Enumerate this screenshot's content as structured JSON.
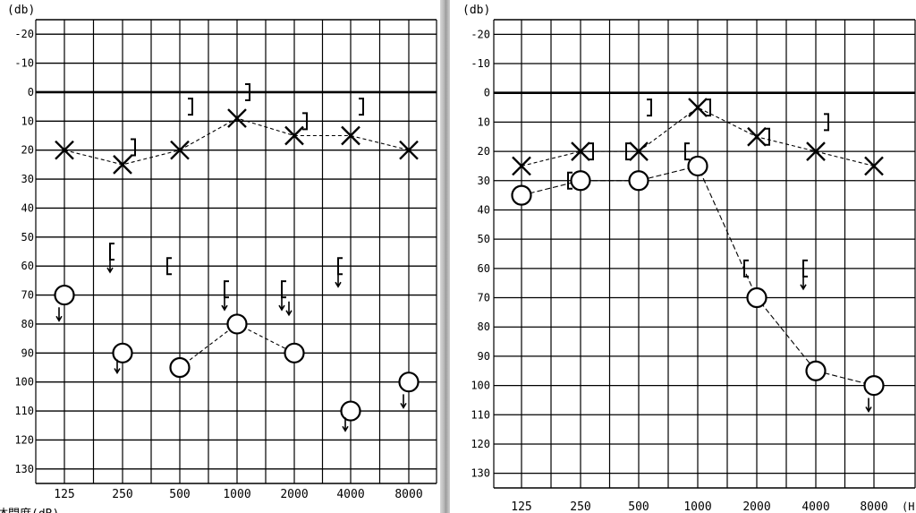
{
  "chart_data": [
    {
      "type": "scatter",
      "ylabel": "(db)",
      "y_ticks": [
        "-20",
        "-10",
        "0",
        "10",
        "20",
        "30",
        "40",
        "50",
        "60",
        "70",
        "80",
        "90",
        "100",
        "110",
        "120",
        "130"
      ],
      "x_ticks": [
        "125",
        "250",
        "500",
        "1000",
        "2000",
        "4000",
        "8000"
      ],
      "ylim": [
        -25,
        135
      ],
      "y_reversed": true,
      "grid": true,
      "footer_text": "体間度(dB)",
      "series": [
        {
          "marker": "X",
          "connected": true,
          "dash": true,
          "points": [
            [
              125,
              20
            ],
            [
              250,
              25
            ],
            [
              500,
              20
            ],
            [
              1000,
              9
            ],
            [
              2000,
              15
            ],
            [
              4000,
              15
            ],
            [
              8000,
              20
            ]
          ]
        },
        {
          "marker": "O",
          "connected": false,
          "points": [
            [
              125,
              70
            ],
            [
              250,
              90
            ],
            [
              500,
              95
            ],
            [
              1000,
              80
            ],
            [
              2000,
              90
            ],
            [
              4000,
              110
            ],
            [
              8000,
              100
            ]
          ],
          "lines": [
            [
              [
                500,
                95
              ],
              [
                1000,
                80
              ]
            ],
            [
              [
                1000,
                80
              ],
              [
                2000,
                90
              ]
            ]
          ]
        },
        {
          "marker": "]",
          "points": [
            [
              250,
              19
            ],
            [
              500,
              5
            ],
            [
              1000,
              0
            ],
            [
              2000,
              10
            ],
            [
              4000,
              5
            ]
          ]
        },
        {
          "marker": "[",
          "points": [
            [
              250,
              55
            ],
            [
              500,
              60
            ],
            [
              1000,
              68
            ],
            [
              2000,
              68
            ],
            [
              4000,
              60
            ]
          ],
          "arrows": [
            250,
            1000,
            2000,
            4000
          ]
        },
        {
          "marker": "arrow",
          "points": [
            [
              125,
              77
            ],
            [
              250,
              95
            ],
            [
              2000,
              75
            ],
            [
              4000,
              115
            ],
            [
              8000,
              107
            ]
          ]
        }
      ]
    },
    {
      "type": "scatter",
      "ylabel": "(db)",
      "y_ticks": [
        "-20",
        "-10",
        "0",
        "10",
        "20",
        "30",
        "40",
        "50",
        "60",
        "70",
        "80",
        "90",
        "100",
        "110",
        "120",
        "130"
      ],
      "x_ticks": [
        "125",
        "250",
        "500",
        "1000",
        "2000",
        "4000",
        "8000"
      ],
      "x_unit_cut": "(H",
      "ylim": [
        -25,
        135
      ],
      "y_reversed": true,
      "grid": true,
      "series": [
        {
          "marker": "X",
          "connected": true,
          "dash": true,
          "points": [
            [
              125,
              25
            ],
            [
              250,
              20
            ],
            [
              500,
              20
            ],
            [
              1000,
              5
            ],
            [
              2000,
              15
            ],
            [
              4000,
              20
            ],
            [
              8000,
              25
            ]
          ]
        },
        {
          "marker": "O",
          "connected": true,
          "points": [
            [
              125,
              35
            ],
            [
              250,
              30
            ],
            [
              500,
              30
            ],
            [
              1000,
              25
            ],
            [
              2000,
              70
            ],
            [
              4000,
              95
            ],
            [
              8000,
              100
            ]
          ]
        },
        {
          "marker": "]",
          "points": [
            [
              250,
              20
            ],
            [
              500,
              5
            ],
            [
              1000,
              5
            ],
            [
              2000,
              15
            ],
            [
              4000,
              10
            ]
          ]
        },
        {
          "marker": "[",
          "points": [
            [
              250,
              30
            ],
            [
              500,
              20
            ],
            [
              1000,
              20
            ],
            [
              2000,
              60
            ],
            [
              4000,
              60
            ]
          ],
          "arrows": [
            4000
          ]
        },
        {
          "marker": "arrow",
          "points": [
            [
              8000,
              107
            ]
          ]
        }
      ]
    }
  ]
}
